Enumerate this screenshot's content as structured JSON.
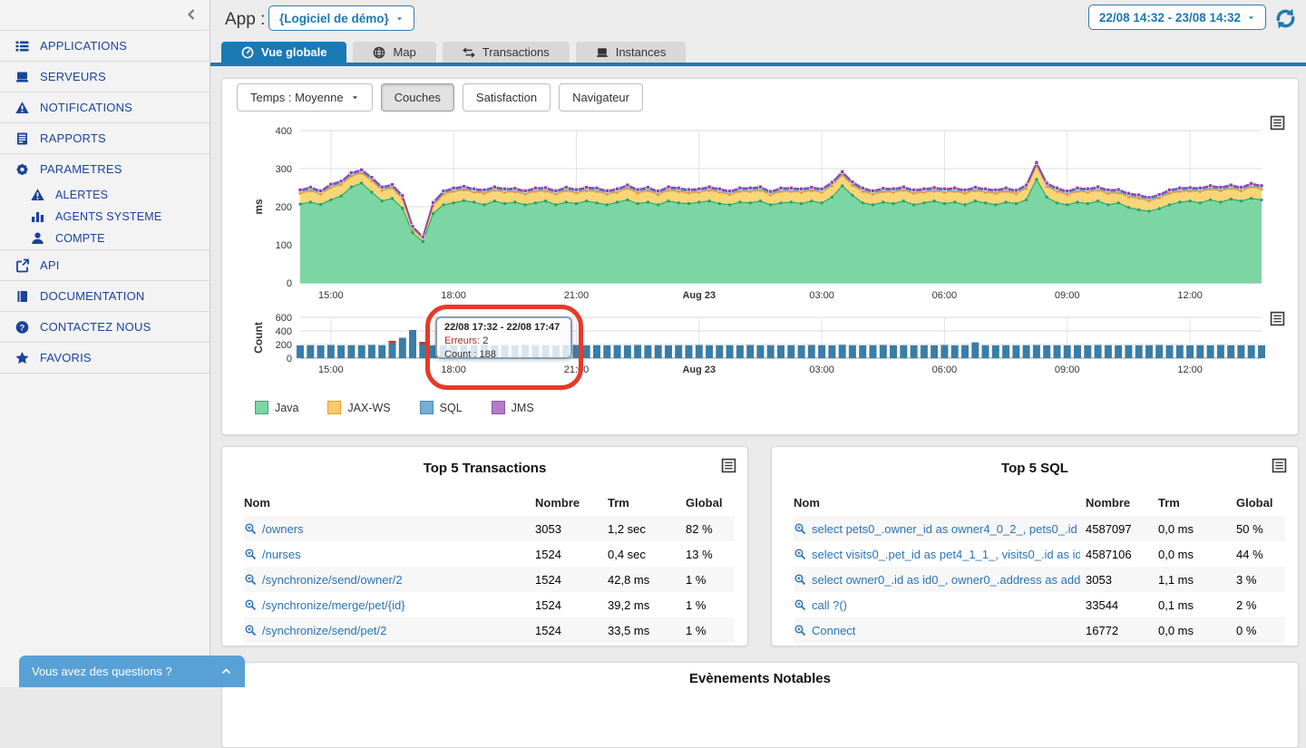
{
  "sidebar": {
    "collapse_icon": "chevron-left",
    "items": [
      {
        "label": "APPLICATIONS",
        "icon": "list-icon",
        "sub": false
      },
      {
        "label": "SERVEURS",
        "icon": "server-icon",
        "sub": false
      },
      {
        "label": "NOTIFICATIONS",
        "icon": "warning-icon",
        "sub": false
      },
      {
        "label": "RAPPORTS",
        "icon": "report-icon",
        "sub": false
      },
      {
        "label": "PARAMETRES",
        "icon": "gear-icon",
        "sub": false
      },
      {
        "label": "ALERTES",
        "icon": "warning-icon",
        "sub": true
      },
      {
        "label": "AGENTS SYSTEME",
        "icon": "bar-chart-icon",
        "sub": true
      },
      {
        "label": "COMPTE",
        "icon": "user-icon",
        "sub": true
      },
      {
        "label": "API",
        "icon": "api-icon",
        "sub": false
      },
      {
        "label": "DOCUMENTATION",
        "icon": "book-icon",
        "sub": false
      },
      {
        "label": "CONTACTEZ NOUS",
        "icon": "help-icon",
        "sub": false
      },
      {
        "label": "FAVORIS",
        "icon": "star-icon",
        "sub": false
      }
    ],
    "chat": {
      "label": "Vous avez des questions ?"
    }
  },
  "header": {
    "app_label": "App :",
    "app_selector": "{Logiciel de démo}",
    "date_range": "22/08 14:32 - 23/08 14:32"
  },
  "tabs": [
    {
      "label": "Vue globale",
      "icon": "gauge-icon",
      "active": true
    },
    {
      "label": "Map",
      "icon": "globe-icon",
      "active": false
    },
    {
      "label": "Transactions",
      "icon": "transfer-icon",
      "active": false
    },
    {
      "label": "Instances",
      "icon": "server-icon",
      "active": false
    }
  ],
  "filters": {
    "time_dropdown": "Temps : Moyenne",
    "buttons": [
      {
        "label": "Couches",
        "active": true
      },
      {
        "label": "Satisfaction",
        "active": false
      },
      {
        "label": "Navigateur",
        "active": false
      }
    ]
  },
  "legend": [
    {
      "label": "Java",
      "color": "#7bd6a3",
      "border": "#3aa76d"
    },
    {
      "label": "JAX-WS",
      "color": "#f9cb6a",
      "border": "#e0a030"
    },
    {
      "label": "SQL",
      "color": "#75afd6",
      "border": "#4d87b5"
    },
    {
      "label": "JMS",
      "color": "#b27cc6",
      "border": "#8c56a5"
    }
  ],
  "tooltip": {
    "title": "22/08 17:32 - 22/08 17:47",
    "error_label": "Erreurs",
    "error_sep": ": ",
    "error_value": "2",
    "count_label": "Count",
    "count_sep": " : ",
    "count_value": "188"
  },
  "chart_data": [
    {
      "type": "area",
      "stacked": true,
      "ylabel": "ms",
      "ylim": [
        0,
        400
      ],
      "yticks": [
        0,
        100,
        200,
        300,
        400
      ],
      "x_start": "22/08 14:15",
      "x_step_minutes": 15,
      "x_ticks": [
        {
          "label": "15:00",
          "index": 3,
          "bold": false
        },
        {
          "label": "18:00",
          "index": 15,
          "bold": false
        },
        {
          "label": "21:00",
          "index": 27,
          "bold": false
        },
        {
          "label": "Aug 23",
          "index": 39,
          "bold": true
        },
        {
          "label": "03:00",
          "index": 51,
          "bold": false
        },
        {
          "label": "06:00",
          "index": 63,
          "bold": false
        },
        {
          "label": "09:00",
          "index": 75,
          "bold": false
        },
        {
          "label": "12:00",
          "index": 87,
          "bold": false
        }
      ],
      "series": [
        {
          "name": "Java",
          "fill": "#7bd6a3",
          "stroke": "#2aa368",
          "values": [
            207,
            212,
            206,
            218,
            228,
            252,
            262,
            238,
            215,
            222,
            196,
            132,
            108,
            182,
            205,
            210,
            216,
            212,
            205,
            215,
            208,
            212,
            205,
            210,
            215,
            205,
            212,
            208,
            215,
            210,
            205,
            212,
            218,
            208,
            212,
            205,
            215,
            210,
            208,
            212,
            215,
            208,
            205,
            212,
            210,
            215,
            205,
            210,
            212,
            208,
            215,
            210,
            225,
            255,
            230,
            210,
            205,
            212,
            208,
            215,
            205,
            210,
            215,
            208,
            212,
            205,
            215,
            210,
            205,
            212,
            208,
            218,
            272,
            225,
            210,
            205,
            212,
            208,
            215,
            205,
            210,
            198,
            192,
            188,
            195,
            205,
            212,
            215,
            210,
            218,
            212,
            220,
            215,
            222,
            218
          ]
        },
        {
          "name": "JAX-WS",
          "fill": "#f8d678",
          "stroke": "#e39b3d",
          "values": [
            28,
            30,
            27,
            32,
            30,
            28,
            26,
            30,
            28,
            27,
            24,
            10,
            8,
            20,
            27,
            30,
            28,
            26,
            30,
            28,
            30,
            27,
            28,
            30,
            26,
            28,
            30,
            28,
            27,
            30,
            28,
            26,
            30,
            28,
            30,
            27,
            28,
            30,
            28,
            26,
            28,
            30,
            27,
            28,
            30,
            28,
            26,
            30,
            28,
            30,
            27,
            28,
            30,
            28,
            26,
            30,
            28,
            27,
            30,
            28,
            30,
            28,
            26,
            30,
            28,
            30,
            27,
            28,
            30,
            28,
            26,
            30,
            35,
            28,
            30,
            27,
            28,
            30,
            28,
            30,
            26,
            28,
            30,
            27,
            28,
            30,
            28,
            26,
            30,
            28,
            30,
            28,
            27,
            30,
            28
          ]
        },
        {
          "name": "SQL",
          "fill": "#8bbedf",
          "stroke": "#4d87b5",
          "values": [
            5,
            5,
            5,
            5,
            5,
            5,
            5,
            5,
            5,
            5,
            5,
            3,
            3,
            5,
            5,
            5,
            5,
            5,
            5,
            5,
            5,
            5,
            5,
            5,
            5,
            5,
            5,
            5,
            5,
            5,
            5,
            5,
            5,
            5,
            5,
            5,
            5,
            5,
            5,
            5,
            5,
            5,
            5,
            5,
            5,
            5,
            5,
            5,
            5,
            5,
            5,
            5,
            5,
            5,
            5,
            5,
            5,
            5,
            5,
            5,
            5,
            5,
            5,
            5,
            5,
            5,
            5,
            5,
            5,
            5,
            5,
            5,
            5,
            5,
            5,
            5,
            5,
            5,
            5,
            5,
            5,
            5,
            5,
            5,
            5,
            5,
            5,
            5,
            5,
            5,
            5,
            5,
            5,
            5,
            5
          ]
        },
        {
          "name": "JMS",
          "fill": "#a86fc2",
          "stroke": "#8e44ad",
          "values": [
            4,
            4,
            4,
            4,
            4,
            4,
            4,
            4,
            4,
            4,
            4,
            3,
            2,
            4,
            4,
            4,
            4,
            4,
            4,
            4,
            4,
            4,
            4,
            4,
            4,
            4,
            4,
            4,
            4,
            4,
            4,
            4,
            4,
            4,
            4,
            4,
            4,
            4,
            4,
            4,
            4,
            4,
            4,
            4,
            4,
            4,
            4,
            4,
            4,
            4,
            4,
            4,
            4,
            4,
            4,
            4,
            4,
            4,
            4,
            4,
            4,
            4,
            4,
            4,
            4,
            4,
            4,
            4,
            4,
            4,
            4,
            4,
            4,
            4,
            4,
            4,
            4,
            4,
            4,
            4,
            4,
            4,
            4,
            4,
            4,
            4,
            4,
            4,
            4,
            4,
            4,
            4,
            4,
            4,
            4
          ]
        }
      ]
    },
    {
      "type": "bar",
      "ylabel": "Count",
      "ylim": [
        0,
        600
      ],
      "yticks": [
        0,
        200,
        400,
        600
      ],
      "bar_color": "#3a7da7",
      "error_color": "#c0392b",
      "x_start": "22/08 14:15",
      "x_step_minutes": 15,
      "x_ticks": [
        {
          "label": "15:00",
          "index": 3,
          "bold": false
        },
        {
          "label": "18:00",
          "index": 15,
          "bold": false
        },
        {
          "label": "21:00",
          "index": 27,
          "bold": false
        },
        {
          "label": "Aug 23",
          "index": 39,
          "bold": true
        },
        {
          "label": "03:00",
          "index": 51,
          "bold": false
        },
        {
          "label": "06:00",
          "index": 63,
          "bold": false
        },
        {
          "label": "09:00",
          "index": 75,
          "bold": false
        },
        {
          "label": "12:00",
          "index": 87,
          "bold": false
        }
      ],
      "values": [
        188,
        190,
        187,
        192,
        188,
        190,
        188,
        193,
        190,
        215,
        300,
        415,
        200,
        188,
        190,
        188,
        192,
        188,
        190,
        188,
        190,
        188,
        192,
        188,
        190,
        188,
        190,
        192,
        188,
        190,
        188,
        190,
        188,
        192,
        188,
        190,
        188,
        190,
        188,
        192,
        190,
        188,
        190,
        188,
        192,
        188,
        190,
        188,
        190,
        188,
        192,
        190,
        188,
        195,
        190,
        188,
        190,
        192,
        188,
        190,
        188,
        190,
        188,
        192,
        188,
        190,
        232,
        190,
        188,
        190,
        188,
        190,
        192,
        188,
        190,
        188,
        190,
        188,
        192,
        190,
        188,
        190,
        188,
        190,
        192,
        188,
        190,
        188,
        190,
        188,
        192,
        188,
        190,
        188,
        186
      ],
      "error_indices": [
        9,
        12
      ]
    }
  ],
  "tables": {
    "transactions": {
      "title": "Top 5 Transactions",
      "columns": [
        "Nom",
        "Nombre",
        "Trm",
        "Global"
      ],
      "rows": [
        {
          "name": "/owners",
          "nombre": "3053",
          "trm": "1,2 sec",
          "global": "82 %"
        },
        {
          "name": "/nurses",
          "nombre": "1524",
          "trm": "0,4 sec",
          "global": "13 %"
        },
        {
          "name": "/synchronize/send/owner/2",
          "nombre": "1524",
          "trm": "42,8 ms",
          "global": "1 %"
        },
        {
          "name": "/synchronize/merge/pet/{id}",
          "nombre": "1524",
          "trm": "39,2 ms",
          "global": "1 %"
        },
        {
          "name": "/synchronize/send/pet/2",
          "nombre": "1524",
          "trm": "33,5 ms",
          "global": "1 %"
        }
      ]
    },
    "sql": {
      "title": "Top 5 SQL",
      "columns": [
        "Nom",
        "Nombre",
        "Trm",
        "Global"
      ],
      "rows": [
        {
          "name": "select pets0_.owner_id as owner4_0_2_, pets0_.id ...",
          "nombre": "4587097",
          "trm": "0,0 ms",
          "global": "50 %"
        },
        {
          "name": "select visits0_.pet_id as pet4_1_1_, visits0_.id as id...",
          "nombre": "4587106",
          "trm": "0,0 ms",
          "global": "44 %"
        },
        {
          "name": "select owner0_.id as id0_, owner0_.address as add...",
          "nombre": "3053",
          "trm": "1,1 ms",
          "global": "3 %"
        },
        {
          "name": "call ?()",
          "nombre": "33544",
          "trm": "0,1 ms",
          "global": "2 %"
        },
        {
          "name": "Connect",
          "nombre": "16772",
          "trm": "0,0 ms",
          "global": "0 %"
        }
      ]
    }
  },
  "bottom": {
    "title": "Evènements Notables"
  }
}
